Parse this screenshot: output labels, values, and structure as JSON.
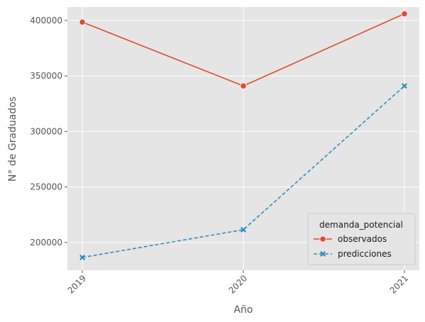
{
  "chart_data": {
    "type": "line",
    "title": "",
    "xlabel": "Año",
    "ylabel": "N° de Graduados",
    "x": [
      "2019",
      "2020",
      "2021"
    ],
    "ylim": [
      175000,
      412000
    ],
    "yticks": [
      200000,
      250000,
      300000,
      350000,
      400000
    ],
    "yticklabels": [
      "200000",
      "250000",
      "300000",
      "350000",
      "400000"
    ],
    "grid": true,
    "legend": {
      "title": "demanda_potencial",
      "placement": "lower-right"
    },
    "series": [
      {
        "name": "observados",
        "values": [
          398500,
          341000,
          406000
        ],
        "color": "#E24A33",
        "marker": "circle",
        "linestyle": "solid"
      },
      {
        "name": "predicciones",
        "values": [
          186500,
          211500,
          341000
        ],
        "color": "#348ABD",
        "marker": "x",
        "linestyle": "dashed"
      }
    ]
  }
}
